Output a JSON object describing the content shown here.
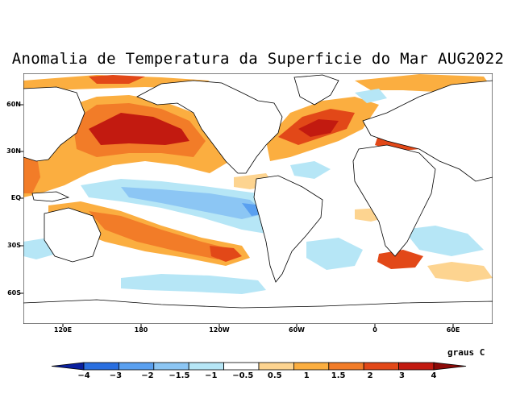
{
  "title": "Anomalia de Temperatura da Superficie do Mar AUG2022",
  "lat_labels": [
    "60N",
    "30N",
    "EQ",
    "30S",
    "60S"
  ],
  "lon_labels": [
    "120E",
    "180",
    "120W",
    "60W",
    "0",
    "60E"
  ],
  "colorbar": {
    "units": "graus C",
    "labels": [
      "−4",
      "−3",
      "−2",
      "−1.5",
      "−1",
      "−0.5",
      "0.5",
      "1",
      "1.5",
      "2",
      "3",
      "4"
    ],
    "colors": [
      "#0a1f9e",
      "#2a6fe0",
      "#5aa0f0",
      "#8cc6f4",
      "#b6e6f6",
      "#ffffff",
      "#fdd490",
      "#fbae40",
      "#f27c28",
      "#e24818",
      "#c21a10",
      "#8c0a08"
    ]
  },
  "land_color": "#ffffff",
  "coast_color": "#000000"
}
